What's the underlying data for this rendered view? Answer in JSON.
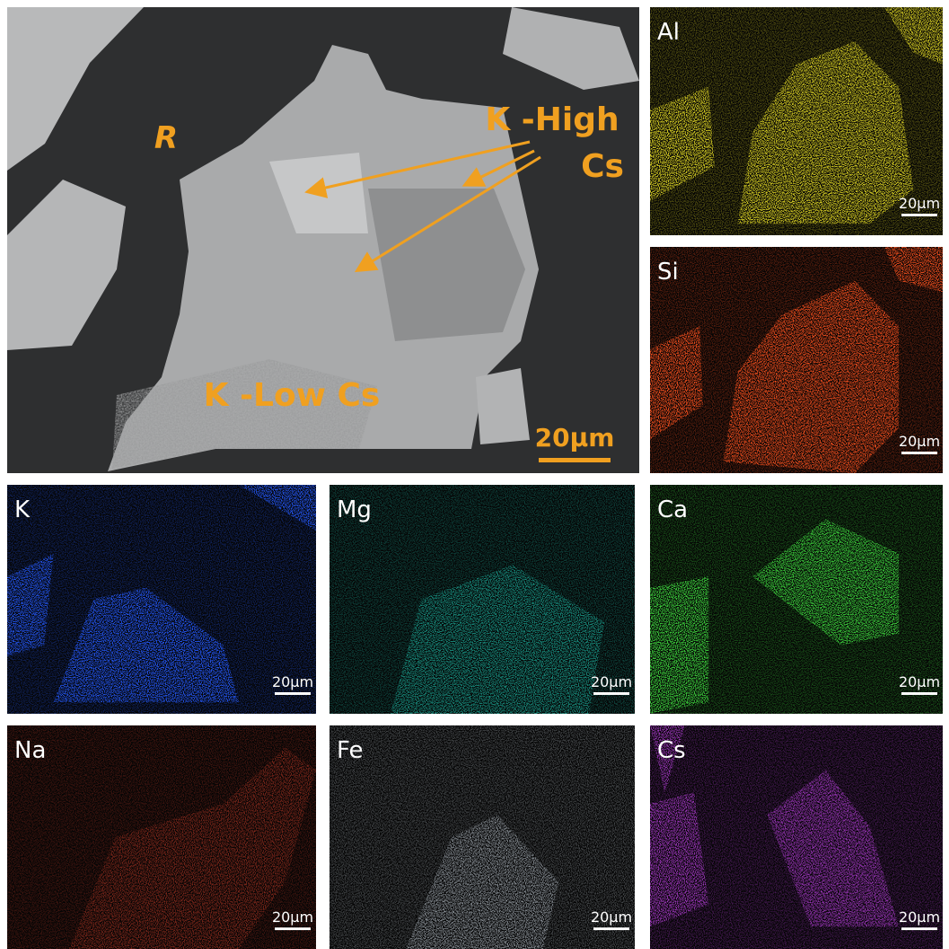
{
  "main_image": {
    "labels": {
      "region": "R",
      "k_high_cs": [
        "K -High",
        "Cs"
      ],
      "k_low_cs": "K -Low Cs"
    },
    "scale_bar": "20μm"
  },
  "element_maps": [
    {
      "element": "Al",
      "scale_bar": "20μm",
      "color": "#c8c020"
    },
    {
      "element": "Si",
      "scale_bar": "20μm",
      "color": "#e0481c"
    },
    {
      "element": "K",
      "scale_bar": "20μm",
      "color": "#2050e0"
    },
    {
      "element": "Mg",
      "scale_bar": "20μm",
      "color": "#1aa090"
    },
    {
      "element": "Ca",
      "scale_bar": "20μm",
      "color": "#38c038"
    },
    {
      "element": "Na",
      "scale_bar": "20μm",
      "color": "#a03020"
    },
    {
      "element": "Fe",
      "scale_bar": "20μm",
      "color": "#a8b0b8"
    },
    {
      "element": "Cs",
      "scale_bar": "20μm",
      "color": "#a038c0"
    }
  ]
}
